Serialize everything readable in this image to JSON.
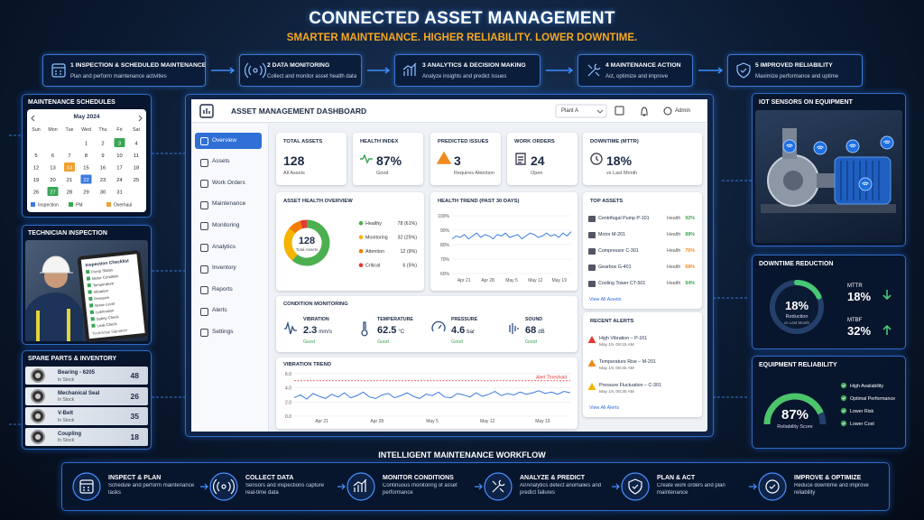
{
  "header": {
    "title": "CONNECTED ASSET MANAGEMENT",
    "subtitle": "SMARTER MAINTENANCE. HIGHER RELIABILITY. LOWER DOWNTIME."
  },
  "steps": [
    {
      "title": "1 INSPECTION & SCHEDULED MAINTENANCE",
      "text": "Plan and perform maintenance activities"
    },
    {
      "title": "2 DATA MONITORING",
      "text": "Collect and monitor asset health data"
    },
    {
      "title": "3 ANALYTICS & DECISION MAKING",
      "text": "Analyze insights and predict issues"
    },
    {
      "title": "4 MAINTENANCE ACTION",
      "text": "Act, optimize and improve"
    },
    {
      "title": "5 IMPROVED RELIABILITY",
      "text": "Maximize performance and uptime"
    }
  ],
  "schedule": {
    "title": "MAINTENANCE SCHEDULES",
    "month": "May 2024",
    "weekdays": [
      "Sun",
      "Mon",
      "Tue",
      "Wed",
      "Thu",
      "Fri",
      "Sat"
    ],
    "weeks": [
      [
        null,
        null,
        null,
        1,
        2,
        {
          "value": 3,
          "color": "#3aa655"
        },
        4
      ],
      [
        5,
        6,
        7,
        8,
        9,
        10,
        11
      ],
      [
        12,
        13,
        {
          "value": 14,
          "color": "#f0a030"
        },
        15,
        16,
        17,
        18
      ],
      [
        19,
        20,
        21,
        {
          "value": 22,
          "color": "#3b7be0"
        },
        23,
        24,
        25
      ],
      [
        26,
        {
          "value": 27,
          "color": "#3aa655"
        },
        28,
        29,
        30,
        31,
        null
      ]
    ],
    "legend": [
      {
        "name": "Inspection",
        "color": "#3b7be0"
      },
      {
        "name": "PM",
        "color": "#3aa655"
      },
      {
        "name": "Overhaul",
        "color": "#f0a030"
      }
    ]
  },
  "technician": {
    "title": "TECHNICIAN INSPECTION",
    "checklist_title": "Inspection Checklist",
    "items": [
      "Pump Status",
      "Motor Condition",
      "Temperature",
      "Vibration",
      "Pressure",
      "Noise Level",
      "Lubrication",
      "Safety Check",
      "Leak Check"
    ],
    "footer": "Technician Signature"
  },
  "spare_parts": {
    "title": "SPARE PARTS & INVENTORY",
    "items": [
      {
        "name": "Bearing - 6205",
        "status": "In Stock",
        "qty": 48
      },
      {
        "name": "Mechanical Seal",
        "status": "In Stock",
        "qty": 26
      },
      {
        "name": "V-Belt",
        "status": "In Stock",
        "qty": 35
      },
      {
        "name": "Coupling",
        "status": "In Stock",
        "qty": 18
      }
    ]
  },
  "dashboard": {
    "title": "ASSET MANAGEMENT DASHBOARD",
    "plant": "Plant A",
    "user": "Admin",
    "nav": [
      "Overview",
      "Assets",
      "Work Orders",
      "Maintenance",
      "Monitoring",
      "Analytics",
      "Inventory",
      "Reports",
      "Alerts",
      "Settings"
    ],
    "kpis": [
      {
        "label": "TOTAL ASSETS",
        "value": "128",
        "note": "All Assets"
      },
      {
        "label": "HEALTH INDEX",
        "value": "87%",
        "note": "Good"
      },
      {
        "label": "PREDICTED ISSUES",
        "value": "3",
        "note": "Requires Attention"
      },
      {
        "label": "WORK ORDERS",
        "value": "24",
        "note": "Open"
      },
      {
        "label": "DOWNTIME (MTTR)",
        "value": "18%",
        "note": "vs Last Month"
      }
    ],
    "health_overview": {
      "type": "donut",
      "title": "ASSET HEALTH OVERVIEW",
      "total": "128",
      "total_label": "Total Assets",
      "categories": [
        "Healthy",
        "Monitoring",
        "Attention",
        "Critical"
      ],
      "values": [
        78,
        32,
        12,
        6
      ],
      "value_labels": [
        "78 (61%)",
        "32 (25%)",
        "12 (9%)",
        "6 (5%)"
      ],
      "colors": [
        "#4caf50",
        "#f5b400",
        "#f57c00",
        "#e53935"
      ]
    },
    "health_trend": {
      "type": "line",
      "title": "HEALTH TREND (PAST 30 DAYS)",
      "x_labels": [
        "Apr 21",
        "Apr 28",
        "May 5",
        "May 12",
        "May 19"
      ],
      "values": [
        84,
        86,
        85,
        87,
        84,
        86,
        88,
        85,
        87,
        86,
        84,
        87,
        86,
        88,
        85,
        86,
        87,
        84,
        86,
        88,
        87,
        85,
        86,
        88,
        86,
        87,
        85,
        88,
        86,
        89
      ],
      "ylim": [
        60,
        100
      ],
      "yticks": [
        {
          "value": 100,
          "label": "100%"
        },
        {
          "value": 90,
          "label": "90%"
        },
        {
          "value": 80,
          "label": "80%"
        },
        {
          "value": 70,
          "label": "70%"
        },
        {
          "value": 60,
          "label": "60%"
        }
      ],
      "color": "#3b7be0"
    },
    "top_assets": {
      "title": "TOP ASSETS",
      "items": [
        {
          "name": "Centrifugal Pump P-101",
          "label": "Health",
          "value": "92%",
          "color": "#3aa655"
        },
        {
          "name": "Motor M-201",
          "label": "Health",
          "value": "88%",
          "color": "#3aa655"
        },
        {
          "name": "Compressor C-301",
          "label": "Health",
          "value": "76%",
          "color": "#f08a20"
        },
        {
          "name": "Gearbox G-401",
          "label": "Health",
          "value": "68%",
          "color": "#f08a20"
        },
        {
          "name": "Cooling Tower CT-501",
          "label": "Health",
          "value": "94%",
          "color": "#3aa655"
        }
      ],
      "link": "View All Assets"
    },
    "condition": {
      "title": "CONDITION MONITORING",
      "items": [
        {
          "label": "VIBRATION",
          "value": "2.3",
          "unit": "mm/s",
          "status": "Good"
        },
        {
          "label": "TEMPERATURE",
          "value": "62.5",
          "unit": "°C",
          "status": "Good"
        },
        {
          "label": "PRESSURE",
          "value": "4.6",
          "unit": "bar",
          "status": "Good"
        },
        {
          "label": "SOUND",
          "value": "68",
          "unit": "dB",
          "status": "Good"
        }
      ]
    },
    "vibration_trend": {
      "type": "line",
      "title": "VIBRATION TREND",
      "threshold": {
        "value": 5,
        "label": "Alert Threshold"
      },
      "x_labels": [
        "Apr 21",
        "Apr 28",
        "May 5",
        "May 12",
        "May 19"
      ],
      "values": [
        2.6,
        3.0,
        2.4,
        3.2,
        2.8,
        2.5,
        3.1,
        2.7,
        3.3,
        2.6,
        2.9,
        3.4,
        2.7,
        2.5,
        3.0,
        3.2,
        2.6,
        2.9,
        3.3,
        2.8,
        2.5,
        3.1,
        2.9,
        3.4,
        2.7,
        2.6,
        3.2,
        3.0,
        2.7,
        3.3,
        2.8,
        3.1,
        3.5,
        2.9,
        3.2,
        3.0,
        3.4,
        3.1,
        3.3,
        3.6,
        3.2,
        3.4,
        3.1,
        3.5,
        3.3
      ],
      "ylim": [
        0,
        6.5
      ],
      "yticks": [
        {
          "value": 0,
          "label": "0.0"
        },
        {
          "value": 2,
          "label": "2.0"
        },
        {
          "value": 4,
          "label": "4.0"
        },
        {
          "value": 6,
          "label": "6.0"
        }
      ],
      "color": "#3b7be0",
      "threshold_color": "#e53935"
    },
    "alerts": {
      "title": "RECENT ALERTS",
      "items": [
        {
          "title": "High Vibration – P-101",
          "time": "May 19, 09:15 AM",
          "color": "#e53935"
        },
        {
          "title": "Temperature Rise – M-201",
          "time": "May 19, 08:45 AM",
          "color": "#f08a20"
        },
        {
          "title": "Pressure Fluctuation – C-301",
          "time": "May 19, 08:30 AM",
          "color": "#f5b400"
        }
      ],
      "link": "View All Alerts"
    }
  },
  "iot": {
    "title": "IOT SENSORS ON EQUIPMENT"
  },
  "downtime": {
    "title": "DOWNTIME REDUCTION",
    "gauge": {
      "value": 18,
      "label": "18%"
    },
    "gauge_text": "Reduction",
    "gauge_note": "vs Last Month",
    "metrics": [
      {
        "name": "MTTR",
        "value": "18%"
      },
      {
        "name": "MTBF",
        "value": "32%"
      }
    ]
  },
  "reliability": {
    "title": "EQUIPMENT RELIABILITY",
    "gauge": {
      "value": 87,
      "label": "87%"
    },
    "gauge_text": "Reliability Score",
    "items": [
      "High Availability",
      "Optimal Performance",
      "Lower Risk",
      "Lower Cost"
    ]
  },
  "workflow": {
    "title": "INTELLIGENT MAINTENANCE WORKFLOW",
    "steps": [
      {
        "title": "INSPECT & PLAN",
        "text": "Schedule and perform maintenance tasks"
      },
      {
        "title": "COLLECT DATA",
        "text": "Sensors and inspections capture real-time data"
      },
      {
        "title": "MONITOR CONDITIONS",
        "text": "Continuous monitoring of asset performance"
      },
      {
        "title": "ANALYZE & PREDICT",
        "text": "AI/Analytics detect anomalies and predict failures"
      },
      {
        "title": "PLAN & ACT",
        "text": "Create work orders and plan maintenance"
      },
      {
        "title": "IMPROVE & OPTIMIZE",
        "text": "Reduce downtime and improve reliability"
      }
    ]
  }
}
